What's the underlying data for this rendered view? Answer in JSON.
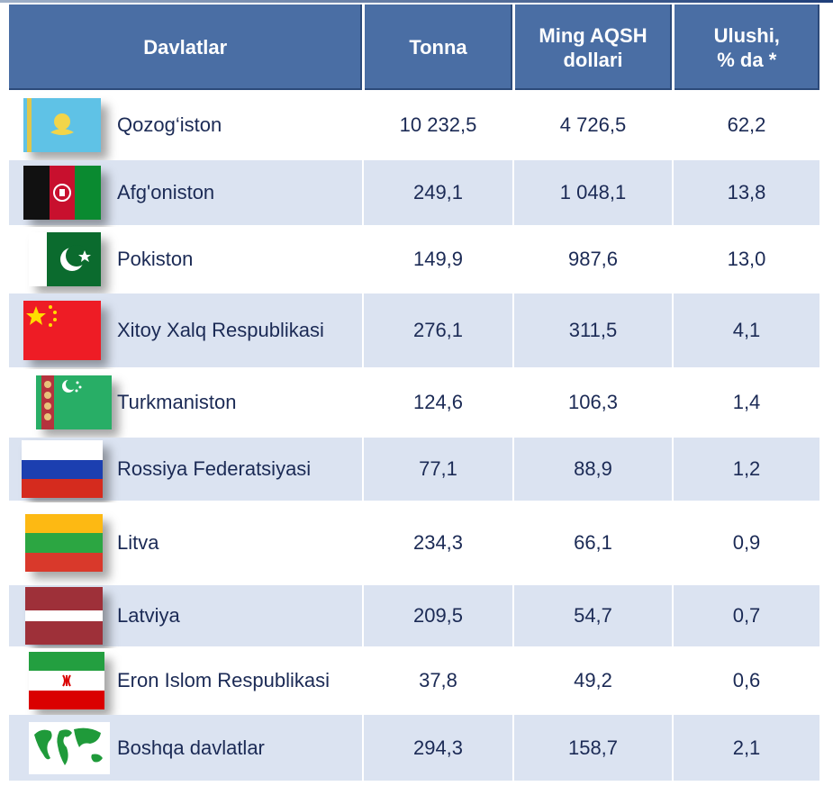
{
  "headers": {
    "country": "Davlatlar",
    "tonna": "Tonna",
    "usd_line1": "Ming AQSH",
    "usd_line2": "dollari",
    "share_line1": "Ulushi,",
    "share_line2": "% da *"
  },
  "rows": [
    {
      "country": "Qozog‘iston",
      "flag_icon": "kazakhstan-flag-icon",
      "tonna": "10 232,5",
      "usd": "4 726,5",
      "share": "62,2"
    },
    {
      "country": "Afg'oniston",
      "flag_icon": "afghanistan-flag-icon",
      "tonna": "249,1",
      "usd": "1 048,1",
      "share": "13,8"
    },
    {
      "country": "Pokiston",
      "flag_icon": "pakistan-flag-icon",
      "tonna": "149,9",
      "usd": "987,6",
      "share": "13,0"
    },
    {
      "country": "Xitoy Xalq Respublikasi",
      "flag_icon": "china-flag-icon",
      "tonna": "276,1",
      "usd": "311,5",
      "share": "4,1"
    },
    {
      "country": "Turkmaniston",
      "flag_icon": "turkmenistan-flag-icon",
      "tonna": "124,6",
      "usd": "106,3",
      "share": "1,4"
    },
    {
      "country": "Rossiya Federatsiyasi",
      "flag_icon": "russia-flag-icon",
      "tonna": "77,1",
      "usd": "88,9",
      "share": "1,2"
    },
    {
      "country": "Litva",
      "flag_icon": "lithuania-flag-icon",
      "tonna": "234,3",
      "usd": "66,1",
      "share": "0,9"
    },
    {
      "country": "Latviya",
      "flag_icon": "latvia-flag-icon",
      "tonna": "209,5",
      "usd": "54,7",
      "share": "0,7"
    },
    {
      "country": "Eron Islom Respublikasi",
      "flag_icon": "iran-flag-icon",
      "tonna": "37,8",
      "usd": "49,2",
      "share": "0,6"
    },
    {
      "country": "Boshqa davlatlar",
      "flag_icon": "world-map-icon",
      "tonna": "294,3",
      "usd": "158,7",
      "share": "2,1"
    }
  ],
  "colors": {
    "header_bg": "#4a6ea4",
    "row_alt_bg": "#dbe3f1",
    "text": "#1b2a55"
  }
}
